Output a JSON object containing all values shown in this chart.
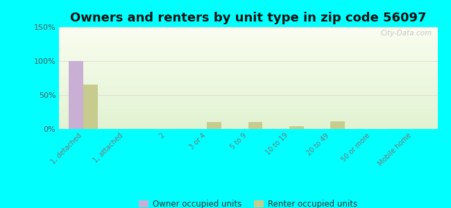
{
  "title": "Owners and renters by unit type in zip code 56097",
  "categories": [
    "1, detached",
    "1, attached",
    "2",
    "3 or 4",
    "5 to 9",
    "10 to 19",
    "20 to 49",
    "50 or more",
    "Mobile home"
  ],
  "owner_values": [
    100,
    0,
    0,
    0,
    0,
    0,
    0,
    0,
    0
  ],
  "renter_values": [
    65,
    0,
    0,
    10,
    10,
    4,
    11,
    0,
    0
  ],
  "owner_color": "#c9afd4",
  "renter_color": "#c8cb8e",
  "ylim": [
    0,
    150
  ],
  "yticks": [
    0,
    50,
    100,
    150
  ],
  "ytick_labels": [
    "0%",
    "50%",
    "100%",
    "150%"
  ],
  "background_color": "#00ffff",
  "bar_width": 0.35,
  "legend_owner": "Owner occupied units",
  "legend_renter": "Renter occupied units",
  "title_fontsize": 13,
  "watermark": "City-Data.com"
}
